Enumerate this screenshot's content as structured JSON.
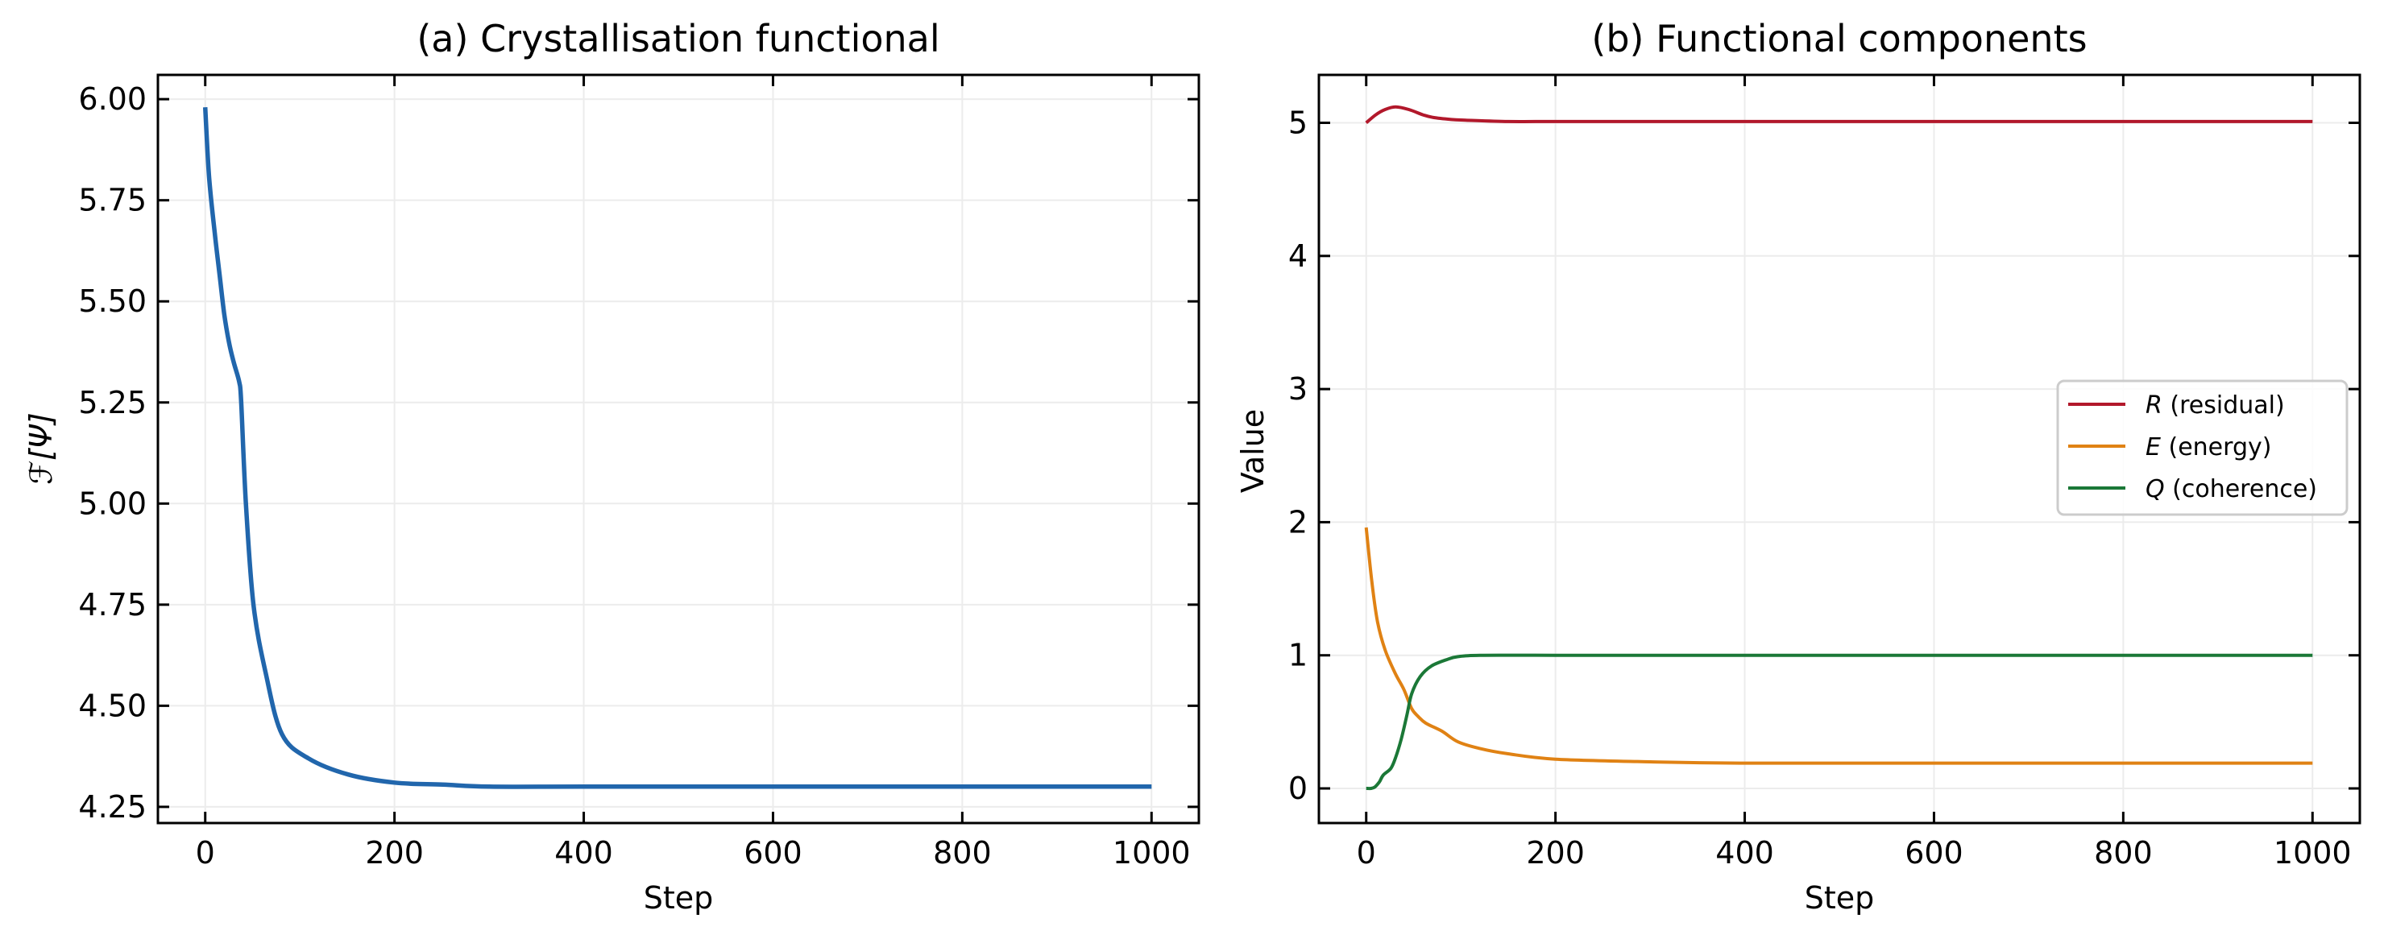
{
  "figure": {
    "panels": [
      {
        "id": "a",
        "title": "(a) Crystallisation functional",
        "xlabel": "Step",
        "ylabel": "ℱ[Ψ]"
      },
      {
        "id": "b",
        "title": "(b) Functional components",
        "xlabel": "Step",
        "ylabel": "Value"
      }
    ]
  },
  "chart_data": [
    {
      "type": "line",
      "title": "(a) Crystallisation functional",
      "xlabel": "Step",
      "ylabel": "F[Ψ]",
      "xlim": [
        -50,
        1050
      ],
      "ylim": [
        4.21,
        6.06
      ],
      "xticks": [
        0,
        200,
        400,
        600,
        800,
        1000
      ],
      "xtick_labels": [
        "0",
        "200",
        "400",
        "600",
        "800",
        "1000"
      ],
      "yticks": [
        4.25,
        4.5,
        4.75,
        5.0,
        5.25,
        5.5,
        5.75,
        6.0
      ],
      "ytick_labels": [
        "4.25",
        "4.50",
        "4.75",
        "5.00",
        "5.25",
        "5.50",
        "5.75",
        "6.00"
      ],
      "grid": true,
      "legend": null,
      "series": [
        {
          "name": "F[Ψ]",
          "color": "#2166ac",
          "x": [
            0,
            4,
            10,
            15,
            20,
            25,
            30,
            36,
            38,
            43,
            51,
            64,
            81,
            109,
            151,
            200,
            251,
            300,
            400,
            600,
            800,
            1000
          ],
          "y": [
            5.98,
            5.81,
            5.67,
            5.57,
            5.47,
            5.4,
            5.35,
            5.3,
            5.25,
            5.0,
            4.75,
            4.58,
            4.43,
            4.37,
            4.33,
            4.31,
            4.305,
            4.3,
            4.3,
            4.3,
            4.3,
            4.3
          ]
        }
      ]
    },
    {
      "type": "line",
      "title": "(b) Functional components",
      "xlabel": "Step",
      "ylabel": "Value",
      "xlim": [
        -50,
        1050
      ],
      "ylim": [
        -0.26,
        5.36
      ],
      "xticks": [
        0,
        200,
        400,
        600,
        800,
        1000
      ],
      "xtick_labels": [
        "0",
        "200",
        "400",
        "600",
        "800",
        "1000"
      ],
      "yticks": [
        0,
        1,
        2,
        3,
        4,
        5
      ],
      "ytick_labels": [
        "0",
        "1",
        "2",
        "3",
        "4",
        "5"
      ],
      "grid": true,
      "legend": {
        "position": "center right",
        "entries": [
          "R (residual)",
          "E (energy)",
          "Q (coherence)"
        ]
      },
      "series": [
        {
          "name": "R (residual)",
          "symbol": "R",
          "desc": "(residual)",
          "color": "#b2182b",
          "x": [
            0,
            10,
            20,
            31,
            45,
            60,
            71,
            90,
            105,
            150,
            200,
            400,
            600,
            800,
            1000
          ],
          "y": [
            5.0,
            5.06,
            5.1,
            5.12,
            5.1,
            5.06,
            5.04,
            5.025,
            5.02,
            5.01,
            5.01,
            5.01,
            5.01,
            5.01,
            5.01
          ]
        },
        {
          "name": "E (energy)",
          "symbol": "E",
          "desc": "(energy)",
          "color": "#e08214",
          "x": [
            0,
            6,
            12,
            20,
            31,
            40,
            48,
            55,
            63,
            80,
            97,
            120,
            150,
            200,
            300,
            400,
            600,
            800,
            1000
          ],
          "y": [
            1.96,
            1.55,
            1.25,
            1.04,
            0.86,
            0.74,
            0.6,
            0.54,
            0.49,
            0.43,
            0.35,
            0.3,
            0.26,
            0.22,
            0.2,
            0.19,
            0.19,
            0.19,
            0.19
          ]
        },
        {
          "name": "Q (coherence)",
          "symbol": "Q",
          "desc": "(coherence)",
          "color": "#1b7837",
          "x": [
            0,
            5,
            9,
            14,
            18,
            26,
            31,
            37,
            43,
            48,
            57,
            69,
            86,
            97,
            120,
            200,
            400,
            600,
            800,
            1000
          ],
          "y": [
            0.0,
            0.0,
            0.01,
            0.05,
            0.1,
            0.15,
            0.23,
            0.37,
            0.55,
            0.71,
            0.84,
            0.92,
            0.97,
            0.99,
            1.0,
            1.0,
            1.0,
            1.0,
            1.0,
            1.0
          ]
        }
      ]
    }
  ]
}
